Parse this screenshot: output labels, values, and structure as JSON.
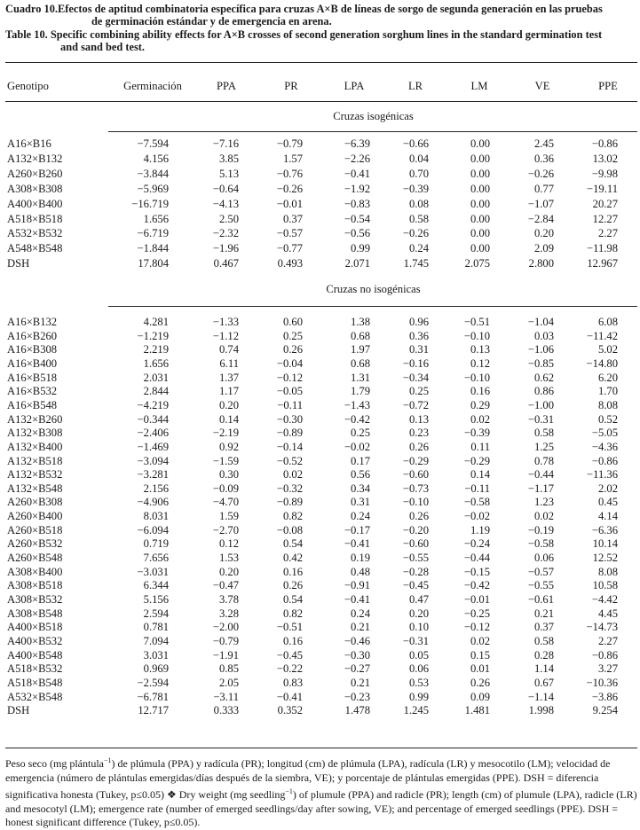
{
  "caption_es": {
    "label": "Cuadro 10.",
    "text": "Efectos de aptitud combinatoria específica para cruzas A×B de líneas de sorgo de segunda generación en las pruebas",
    "text2": "de germinación estándar y de emergencia en arena."
  },
  "caption_en": {
    "label": "Table 10.",
    "text": "Specific combining ability effects for A×B crosses of second generation sorghum lines in the standard germination test",
    "text2": "and sand bed test."
  },
  "columns": [
    "Genotipo",
    "Germinación",
    "PPA",
    "PR",
    "LPA",
    "LR",
    "LM",
    "VE",
    "PPE"
  ],
  "sections": [
    {
      "title": "Cruzas isogénicas",
      "rows": [
        [
          "A16×B16",
          "−7.594",
          "−7.16",
          "−0.79",
          "−6.39",
          "−0.66",
          "0.00",
          "2.45",
          "−0.86"
        ],
        [
          "A132×B132",
          "4.156",
          "3.85",
          "1.57",
          "−2.26",
          "0.04",
          "0.00",
          "0.36",
          "13.02"
        ],
        [
          "A260×B260",
          "−3.844",
          "5.13",
          "−0.76",
          "−0.41",
          "0.70",
          "0.00",
          "−0.26",
          "−9.98"
        ],
        [
          "A308×B308",
          "−5.969",
          "−0.64",
          "−0.26",
          "−1.92",
          "−0.39",
          "0.00",
          "0.77",
          "−19.11"
        ],
        [
          "A400×B400",
          "−16.719",
          "−4.13",
          "−0.01",
          "−0.83",
          "0.08",
          "0.00",
          "−1.07",
          "20.27"
        ],
        [
          "A518×B518",
          "1.656",
          "2.50",
          "0.37",
          "−0.54",
          "0.58",
          "0.00",
          "−2.84",
          "12.27"
        ],
        [
          "A532×B532",
          "−6.719",
          "−2.32",
          "−0.57",
          "−0.56",
          "−0.26",
          "0.00",
          "0.20",
          "2.27"
        ],
        [
          "A548×B548",
          "−1.844",
          "−1.96",
          "−0.77",
          "0.99",
          "0.24",
          "0.00",
          "2.09",
          "−11.98"
        ],
        [
          "DSH",
          "17.804",
          "0.467",
          "0.493",
          "2.071",
          "1.745",
          "2.075",
          "2.800",
          "12.967"
        ]
      ]
    },
    {
      "title": "Cruzas no isogénicas",
      "rows": [
        [
          "A16×B132",
          "4.281",
          "−1.33",
          "0.60",
          "1.38",
          "0.96",
          "−0.51",
          "−1.04",
          "6.08"
        ],
        [
          "A16×B260",
          "−1.219",
          "−1.12",
          "0.25",
          "0.68",
          "0.36",
          "−0.10",
          "0.03",
          "−11.42"
        ],
        [
          "A16×B308",
          "2.219",
          "0.74",
          "0.26",
          "1.97",
          "0.31",
          "0.13",
          "−1.06",
          "5.02"
        ],
        [
          "A16×B400",
          "1.656",
          "6.11",
          "−0.04",
          "0.68",
          "−0.16",
          "0.12",
          "−0.85",
          "−14.80"
        ],
        [
          "A16×B518",
          "2.031",
          "1.37",
          "−0.12",
          "1.31",
          "−0.34",
          "−0.10",
          "0.62",
          "6.20"
        ],
        [
          "A16×B532",
          "2.844",
          "1.17",
          "−0.05",
          "1.79",
          "0.25",
          "0.16",
          "0.86",
          "1.70"
        ],
        [
          "A16×B548",
          "−4.219",
          "0.20",
          "−0.11",
          "−1.43",
          "−0.72",
          "0.29",
          "−1.00",
          "8.08"
        ],
        [
          "A132×B260",
          "−0.344",
          "0.14",
          "−0.30",
          "−0.42",
          "0.13",
          "0.02",
          "−0.31",
          "0.52"
        ],
        [
          "A132×B308",
          "−2.406",
          "−2.19",
          "−0.89",
          "0.25",
          "0.23",
          "−0.39",
          "0.58",
          "−5.05"
        ],
        [
          "A132×B400",
          "−1.469",
          "0.92",
          "−0.14",
          "−0.02",
          "0.26",
          "0.11",
          "1.25",
          "−4.36"
        ],
        [
          "A132×B518",
          "−3.094",
          "−1.59",
          "−0.52",
          "0.17",
          "−0.29",
          "−0.29",
          "0.78",
          "−0.86"
        ],
        [
          "A132×B532",
          "−3.281",
          "0.30",
          "0.02",
          "0.56",
          "−0.60",
          "0.14",
          "−0.44",
          "−11.36"
        ],
        [
          "A132×B548",
          "2.156",
          "−0.09",
          "−0.32",
          "0.34",
          "−0.73",
          "−0.11",
          "−1.17",
          "2.02"
        ],
        [
          "A260×B308",
          "−4.906",
          "−4.70",
          "−0.89",
          "0.31",
          "−0.10",
          "−0.58",
          "1.23",
          "0.45"
        ],
        [
          "A260×B400",
          "8.031",
          "1.59",
          "0.82",
          "0.24",
          "0.26",
          "−0.02",
          "0.02",
          "4.14"
        ],
        [
          "A260×B518",
          "−6.094",
          "−2.70",
          "−0.08",
          "−0.17",
          "−0.20",
          "1.19",
          "−0.19",
          "−6.36"
        ],
        [
          "A260×B532",
          "0.719",
          "0.12",
          "0.54",
          "−0.41",
          "−0.60",
          "−0.24",
          "−0.58",
          "10.14"
        ],
        [
          "A260×B548",
          "7.656",
          "1.53",
          "0.42",
          "0.19",
          "−0.55",
          "−0.44",
          "0.06",
          "12.52"
        ],
        [
          "A308×B400",
          "−3.031",
          "0.20",
          "0.16",
          "0.48",
          "−0.28",
          "−0.15",
          "−0.57",
          "8.08"
        ],
        [
          "A308×B518",
          "6.344",
          "−0.47",
          "0.26",
          "−0.91",
          "−0.45",
          "−0.42",
          "−0.55",
          "10.58"
        ],
        [
          "A308×B532",
          "5.156",
          "3.78",
          "0.54",
          "−0.41",
          "0.47",
          "−0.01",
          "−0.61",
          "−4.42"
        ],
        [
          "A308×B548",
          "2.594",
          "3.28",
          "0.82",
          "0.24",
          "0.20",
          "−0.25",
          "0.21",
          "4.45"
        ],
        [
          "A400×B518",
          "0.781",
          "−2.00",
          "−0.51",
          "0.21",
          "0.10",
          "−0.12",
          "0.37",
          "−14.73"
        ],
        [
          "A400×B532",
          "7.094",
          "−0.79",
          "0.16",
          "−0.46",
          "−0.31",
          "0.02",
          "0.58",
          "2.27"
        ],
        [
          "A400×B548",
          "3.031",
          "−1.91",
          "−0.45",
          "−0.30",
          "0.05",
          "0.15",
          "0.28",
          "−0.86"
        ],
        [
          "A518×B532",
          "0.969",
          "0.85",
          "−0.22",
          "−0.27",
          "0.06",
          "0.01",
          "1.14",
          "3.27"
        ],
        [
          "A518×B548",
          "−2.594",
          "2.05",
          "0.83",
          "0.21",
          "0.53",
          "0.26",
          "0.67",
          "−10.36"
        ],
        [
          "A532×B548",
          "−6.781",
          "−3.11",
          "−0.41",
          "−0.23",
          "0.99",
          "0.09",
          "−1.14",
          "−3.86"
        ],
        [
          "DSH",
          "12.717",
          "0.333",
          "0.352",
          "1.478",
          "1.245",
          "1.481",
          "1.998",
          "9.254"
        ]
      ]
    }
  ],
  "footnote": {
    "p1": "Peso seco (mg plántula",
    "sup1": "−1",
    "p2": ") de plúmula (PPA) y radícula (PR); longitud (cm) de plúmula (LPA), radícula (LR) y mesocotilo (LM); velocidad de emergencia (número de plántulas emergidas/días después de la siembra, VE); y porcentaje de plántulas emergidas (PPE). DSH = diferencia significativa honesta (Tukey, p≤0.05) ❖ Dry weight (mg seedling",
    "sup2": "−1",
    "p3": ") of plumule (PPA) and radicle (PR); length (cm) of plumule (LPA), radicle (LR) and mesocotyl (LM); emergence rate (number of emerged seedlings/day after sowing, VE); and percentage of emerged seedlings (PPE). DSH = honest significant difference (Tukey, p≤0.05)."
  }
}
